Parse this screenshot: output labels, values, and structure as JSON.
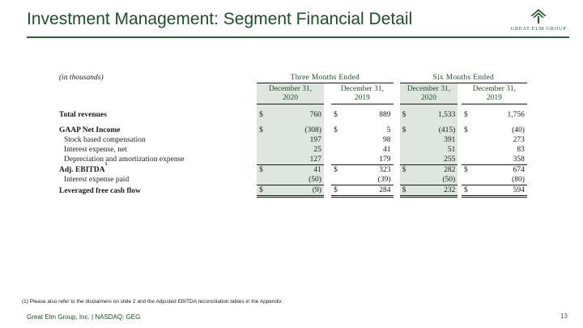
{
  "title": "Investment Management: Segment Financial Detail",
  "logo": {
    "text": "GREAT ELM GROUP",
    "color": "#2e5e3a"
  },
  "table": {
    "units": "(in thousands)",
    "groups": [
      "Three Months Ended",
      "Six Months Ended"
    ],
    "columns": [
      {
        "line1": "December 31,",
        "line2": "2020"
      },
      {
        "line1": "December 31,",
        "line2": "2019"
      },
      {
        "line1": "December 31,",
        "line2": "2020"
      },
      {
        "line1": "December 31,",
        "line2": "2019"
      }
    ],
    "rows": {
      "total_revenues": {
        "label": "Total revenues",
        "values": [
          "760",
          "889",
          "1,533",
          "1,756"
        ]
      },
      "gaap_net_income": {
        "label": "GAAP Net Income",
        "values": [
          "(308)",
          "5",
          "(415)",
          "(40)"
        ]
      },
      "stock_comp": {
        "label": "Stock based compensation",
        "values": [
          "197",
          "98",
          "391",
          "273"
        ]
      },
      "interest_net": {
        "label": "Interest expense, net",
        "values": [
          "25",
          "41",
          "51",
          "83"
        ]
      },
      "dep_amort": {
        "label": "Depreciation and amortization expense",
        "values": [
          "127",
          "179",
          "255",
          "358"
        ]
      },
      "adj_ebitda": {
        "label": "Adj. EBITDA",
        "footnote_mark": "1",
        "values": [
          "41",
          "323",
          "282",
          "674"
        ]
      },
      "interest_paid": {
        "label": "Interest expense paid",
        "values": [
          "(50)",
          "(39)",
          "(50)",
          "(80)"
        ]
      },
      "levered_fcf": {
        "label": "Leveraged free cash flow",
        "values": [
          "(9)",
          "284",
          "232",
          "594"
        ]
      }
    },
    "currency_symbol": "$"
  },
  "footnote": "(1) Please also refer to the disclaimers on slide 2 and the Adjusted EBITDA reconciliation tables in the Appendix",
  "footer": "Great Elm Group, Inc. | NASDAQ: GEG",
  "page_number": "13",
  "colors": {
    "brand_green": "#1e4d2b",
    "shade": "#dfe6df"
  }
}
